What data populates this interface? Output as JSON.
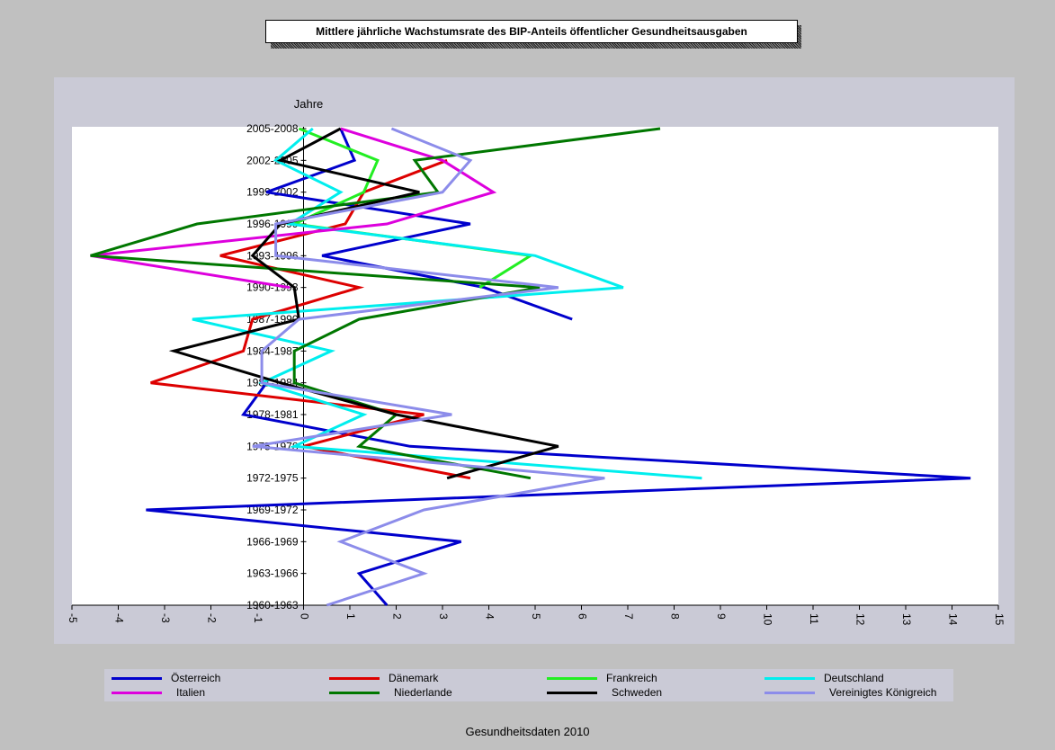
{
  "chart_data": {
    "type": "line",
    "title": "Mittlere jährliche Wachstumsrate des BIP-Anteils öffentlicher Gesundheitsausgaben",
    "ylabel": "Jahre",
    "xlabel": "",
    "xlim": [
      -5,
      15
    ],
    "x_ticks": [
      "-5",
      "-4",
      "-3",
      "-2",
      "-1",
      "0",
      "1",
      "2",
      "3",
      "4",
      "5",
      "6",
      "7",
      "8",
      "9",
      "10",
      "11",
      "12",
      "13",
      "14",
      "15"
    ],
    "categories": [
      "1960-1963",
      "1963-1966",
      "1966-1969",
      "1969-1972",
      "1972-1975",
      "1975-1978",
      "1978-1981",
      "1981-1984",
      "1984-1987",
      "1987-1990",
      "1990-1993",
      "1993-1996",
      "1996-1999",
      "1999-2002",
      "2002-2005",
      "2005-2008"
    ],
    "orientation": "horizontal-values",
    "grid": false,
    "legend_position": "bottom",
    "series": [
      {
        "name": "Österreich",
        "color": "#0000cc",
        "values": [
          1.8,
          1.2,
          3.4,
          -3.4,
          14.4,
          2.3,
          -1.3,
          -0.8,
          null,
          5.8,
          3.9,
          0.4,
          3.6,
          -0.8,
          1.1,
          0.8
        ]
      },
      {
        "name": "Dänemark",
        "color": "#dd0000",
        "values": [
          null,
          null,
          null,
          null,
          3.6,
          0.0,
          2.6,
          -3.3,
          -1.3,
          -1.1,
          1.2,
          -1.8,
          0.9,
          1.3,
          3.1,
          null
        ]
      },
      {
        "name": "Frankreich",
        "color": "#22ee22",
        "values": [
          null,
          null,
          null,
          null,
          null,
          null,
          null,
          null,
          null,
          null,
          3.8,
          4.9,
          -0.2,
          1.3,
          1.6,
          -0.1
        ]
      },
      {
        "name": "Deutschland",
        "color": "#00eeee",
        "values": [
          null,
          null,
          null,
          null,
          8.6,
          -0.2,
          1.3,
          -0.9,
          0.6,
          -2.4,
          6.9,
          5.0,
          -0.3,
          0.8,
          -0.6,
          0.2
        ]
      },
      {
        "name": "Italien",
        "color": "#dd00dd",
        "values": [
          null,
          null,
          null,
          null,
          null,
          null,
          null,
          null,
          null,
          null,
          -0.3,
          -4.6,
          1.8,
          4.1,
          3.0,
          0.8
        ]
      },
      {
        "name": "Niederlande",
        "color": "#007700",
        "values": [
          null,
          null,
          null,
          null,
          4.9,
          1.2,
          2.0,
          -0.2,
          -0.2,
          1.2,
          5.1,
          -4.6,
          -2.3,
          2.9,
          2.4,
          7.7
        ]
      },
      {
        "name": "Schweden",
        "color": "#000000",
        "values": [
          null,
          null,
          null,
          null,
          3.1,
          5.5,
          2.0,
          -0.5,
          -2.8,
          -0.1,
          -0.2,
          -1.1,
          -0.5,
          2.5,
          -0.5,
          0.8
        ]
      },
      {
        "name": "Vereinigtes Königreich",
        "color": "#8c8cea",
        "values": [
          0.5,
          2.6,
          0.8,
          2.6,
          6.5,
          -1.1,
          3.2,
          -0.9,
          -0.9,
          -0.1,
          5.5,
          -0.6,
          -0.6,
          3.0,
          3.6,
          1.9
        ]
      }
    ]
  },
  "footer": "Gesundheitsdaten 2010"
}
